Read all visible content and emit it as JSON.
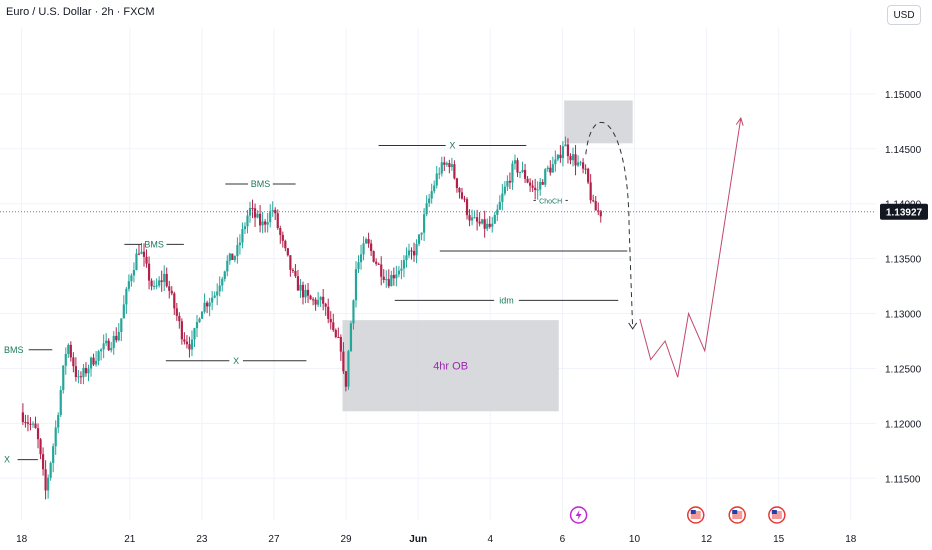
{
  "header": {
    "title": "Euro / U.S. Dollar · 2h · FXCM",
    "currency": "USD"
  },
  "colors": {
    "up": "#26a69a",
    "down": "#b2214a",
    "zone": "#d1d2d6",
    "annotation": "#333333",
    "label_text": "#1b7a5e",
    "ob_text": "#9c27b0",
    "projection": "#c2486a",
    "price_badge": "#131722"
  },
  "chart_data": {
    "type": "candlestick",
    "title": "Euro / U.S. Dollar · 2h · FXCM",
    "x_ticks": [
      {
        "label": "18",
        "x": 0
      },
      {
        "label": "21",
        "x": 3
      },
      {
        "label": "23",
        "x": 5
      },
      {
        "label": "27",
        "x": 7
      },
      {
        "label": "29",
        "x": 9
      },
      {
        "label": "Jun",
        "x": 11
      },
      {
        "label": "4",
        "x": 13
      },
      {
        "label": "6",
        "x": 15
      },
      {
        "label": "10",
        "x": 17
      },
      {
        "label": "12",
        "x": 19
      },
      {
        "label": "15",
        "x": 21
      },
      {
        "label": "18",
        "x": 23
      }
    ],
    "y_ticks": [
      "1.11500",
      "1.12000",
      "1.12500",
      "1.13000",
      "1.13500",
      "1.14000",
      "1.14500",
      "1.15000"
    ],
    "ylim": [
      1.1112,
      1.156
    ],
    "xlim": [
      -0.6,
      23.7
    ],
    "last_price": "1.13927",
    "last_price_value": 1.13927,
    "candle_anchors": [
      [
        0.0,
        1.121
      ],
      [
        0.45,
        1.1192
      ],
      [
        0.7,
        1.1138
      ],
      [
        0.95,
        1.1188
      ],
      [
        1.3,
        1.1275
      ],
      [
        1.6,
        1.1238
      ],
      [
        2.1,
        1.1262
      ],
      [
        2.7,
        1.128
      ],
      [
        3.05,
        1.1335
      ],
      [
        3.3,
        1.136
      ],
      [
        3.7,
        1.132
      ],
      [
        4.0,
        1.1335
      ],
      [
        4.5,
        1.128
      ],
      [
        4.75,
        1.127
      ],
      [
        5.0,
        1.1305
      ],
      [
        5.4,
        1.1318
      ],
      [
        5.7,
        1.1345
      ],
      [
        6.0,
        1.1355
      ],
      [
        6.35,
        1.1395
      ],
      [
        6.7,
        1.138
      ],
      [
        7.0,
        1.1395
      ],
      [
        7.3,
        1.136
      ],
      [
        7.6,
        1.133
      ],
      [
        8.0,
        1.1312
      ],
      [
        8.4,
        1.131
      ],
      [
        8.7,
        1.1278
      ],
      [
        8.9,
        1.127
      ],
      [
        9.0,
        1.1225
      ],
      [
        9.1,
        1.1265
      ],
      [
        9.3,
        1.134
      ],
      [
        9.6,
        1.1365
      ],
      [
        9.9,
        1.1345
      ],
      [
        10.2,
        1.133
      ],
      [
        10.6,
        1.1345
      ],
      [
        11.0,
        1.136
      ],
      [
        11.3,
        1.14
      ],
      [
        11.6,
        1.143
      ],
      [
        11.9,
        1.1438
      ],
      [
        12.2,
        1.141
      ],
      [
        12.5,
        1.1385
      ],
      [
        12.8,
        1.138
      ],
      [
        13.1,
        1.1378
      ],
      [
        13.4,
        1.141
      ],
      [
        13.7,
        1.1435
      ],
      [
        14.0,
        1.1425
      ],
      [
        14.3,
        1.141
      ],
      [
        14.6,
        1.143
      ],
      [
        14.9,
        1.1438
      ],
      [
        15.05,
        1.1455
      ],
      [
        15.25,
        1.1445
      ],
      [
        15.5,
        1.1435
      ],
      [
        15.7,
        1.1425
      ],
      [
        15.9,
        1.1395
      ],
      [
        16.1,
        1.1392
      ]
    ],
    "zones": [
      {
        "x0": 15.05,
        "x1": 16.95,
        "y0": 1.1455,
        "y1": 1.1494,
        "label": ""
      },
      {
        "x0": 8.9,
        "x1": 14.9,
        "y0": 1.1211,
        "y1": 1.1294,
        "label": "4hr OB"
      }
    ],
    "levels": [
      {
        "x0": -0.6,
        "x1": 0.85,
        "y": 1.1267,
        "label": "BMS",
        "label_side": "left"
      },
      {
        "x0": 2.85,
        "x1": 4.5,
        "y": 1.1363,
        "label": "BMS",
        "label_side": "mid"
      },
      {
        "x0": 5.65,
        "x1": 7.6,
        "y": 1.1418,
        "label": "BMS",
        "label_side": "mid"
      },
      {
        "x0": 4.0,
        "x1": 7.9,
        "y": 1.1257,
        "label": "X",
        "label_side": "mid"
      },
      {
        "x0": -0.6,
        "x1": 0.45,
        "y": 1.1167,
        "label": "X",
        "label_side": "left"
      },
      {
        "x0": 9.9,
        "x1": 14.0,
        "y": 1.1453,
        "label": "X",
        "label_side": "mid"
      },
      {
        "x0": 14.2,
        "x1": 15.15,
        "y": 1.1403,
        "label": "ChoCH",
        "label_side": "mid"
      },
      {
        "x0": 11.6,
        "x1": 16.8,
        "y": 1.1357,
        "label": "",
        "label_side": "none"
      },
      {
        "x0": 10.35,
        "x1": 16.55,
        "y": 1.1312,
        "label": "idm",
        "label_side": "mid"
      }
    ],
    "projection_dashed": [
      [
        15.65,
        1.1445
      ],
      [
        16.1,
        1.1475
      ],
      [
        16.55,
        1.1462
      ],
      [
        16.85,
        1.138
      ],
      [
        16.95,
        1.1286
      ]
    ],
    "projection_path": [
      [
        17.15,
        1.1295
      ],
      [
        17.45,
        1.1258
      ],
      [
        17.85,
        1.1275
      ],
      [
        18.2,
        1.1242
      ],
      [
        18.5,
        1.13
      ],
      [
        18.95,
        1.1266
      ],
      [
        19.95,
        1.1478
      ]
    ],
    "events": [
      {
        "x": 15.45,
        "icon": "lightning-icon"
      },
      {
        "x": 18.7,
        "icon": "us-flag-icon"
      },
      {
        "x": 19.85,
        "icon": "us-flag-icon"
      },
      {
        "x": 20.95,
        "icon": "us-flag-icon"
      }
    ]
  }
}
